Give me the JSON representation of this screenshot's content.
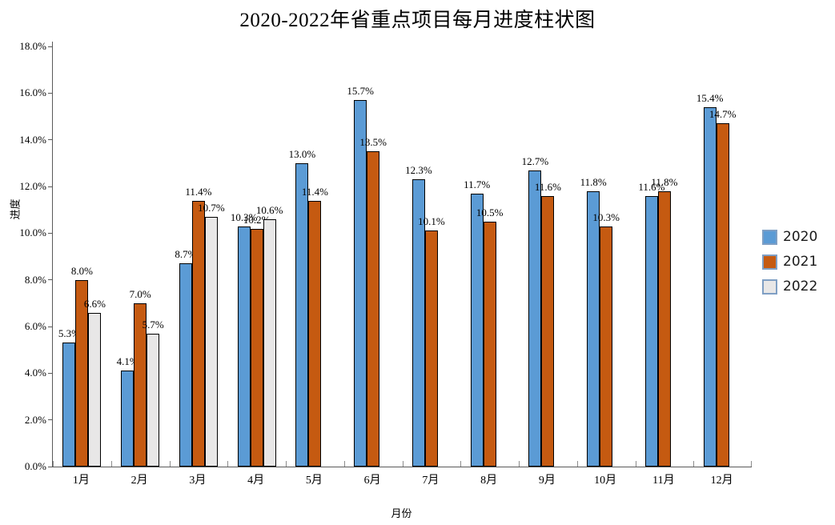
{
  "title": "2020-2022年省重点项目每月进度柱状图",
  "chart_data": {
    "type": "bar",
    "title": "2020-2022年省重点项目每月进度柱状图",
    "xlabel": "月份",
    "ylabel": "进度",
    "ylim": [
      0,
      18
    ],
    "y_tick_step": 2,
    "y_tick_labels": [
      "0.0%",
      "2.0%",
      "4.0%",
      "6.0%",
      "8.0%",
      "10.0%",
      "12.0%",
      "14.0%",
      "16.0%",
      "18.0%"
    ],
    "grid": false,
    "legend_position": "right",
    "bar_edge_color": "#000000",
    "legend_patch_edge_color": "#7f9fc4",
    "categories": [
      "1月",
      "2月",
      "3月",
      "4月",
      "5月",
      "6月",
      "7月",
      "8月",
      "9月",
      "10月",
      "11月",
      "12月"
    ],
    "series": [
      {
        "name": "2020",
        "color": "#5b9bd5",
        "values": [
          5.3,
          4.1,
          8.7,
          10.3,
          13.0,
          15.7,
          12.3,
          11.7,
          12.7,
          11.8,
          11.6,
          15.4
        ],
        "labels": [
          "5.3%",
          "4.1%",
          "8.7%",
          "10.3%",
          "13.0%",
          "15.7%",
          "12.3%",
          "11.7%",
          "12.7%",
          "11.8%",
          "11.6%",
          "15.4%"
        ]
      },
      {
        "name": "2021",
        "color": "#c55a11",
        "values": [
          8.0,
          7.0,
          11.4,
          10.2,
          11.4,
          13.5,
          10.1,
          10.5,
          11.6,
          10.3,
          11.8,
          14.7
        ],
        "labels": [
          "8.0%",
          "7.0%",
          "11.4%",
          "10.2%",
          "11.4%",
          "13.5%",
          "10.1%",
          "10.5%",
          "11.6%",
          "10.3%",
          "11.8%",
          "14.7%"
        ]
      },
      {
        "name": "2022",
        "color": "#e8e7e7",
        "values": [
          6.6,
          5.7,
          10.7,
          10.6,
          null,
          null,
          null,
          null,
          null,
          null,
          null,
          null
        ],
        "labels": [
          "6.6%",
          "5.7%",
          "10.7%",
          "10.6%",
          "",
          "",
          "",
          "",
          "",
          "",
          "",
          ""
        ]
      }
    ]
  }
}
